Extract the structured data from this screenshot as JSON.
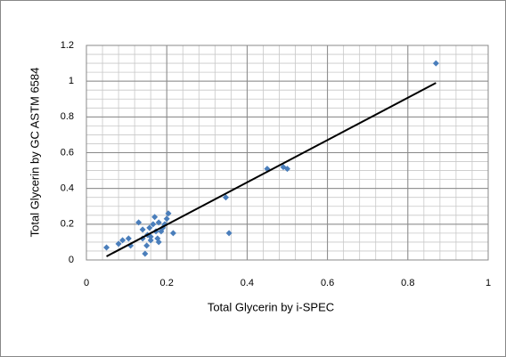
{
  "chart_data": {
    "type": "scatter",
    "x_label": "Total Glycerin by i-SPEC",
    "y_label": "Total Glycerin by GC ASTM 6584",
    "series": [
      {
        "color": "#4a7ebb",
        "x": [
          0.87,
          0.45,
          0.49,
          0.5,
          0.347,
          0.355,
          0.05,
          0.08,
          0.09,
          0.105,
          0.11,
          0.13,
          0.14,
          0.146,
          0.15,
          0.157,
          0.16,
          0.166,
          0.17,
          0.177,
          0.18,
          0.186,
          0.195,
          0.2,
          0.204,
          0.216,
          0.173,
          0.16,
          0.152,
          0.14,
          0.18,
          0.19
        ],
        "values": [
          1.1,
          0.51,
          0.52,
          0.51,
          0.35,
          0.15,
          0.07,
          0.09,
          0.11,
          0.12,
          0.08,
          0.21,
          0.17,
          0.035,
          0.08,
          0.18,
          0.13,
          0.2,
          0.24,
          0.12,
          0.1,
          0.16,
          0.2,
          0.23,
          0.26,
          0.15,
          0.16,
          0.11,
          0.14,
          0.12,
          0.21,
          0.18
        ]
      }
    ],
    "trendline": {
      "x": [
        0.05,
        0.87
      ],
      "values": [
        0.02,
        0.99
      ],
      "color": "#000000"
    },
    "xlim": [
      0,
      1
    ],
    "xticks": [
      0,
      0.2,
      0.4,
      0.6,
      0.8,
      1
    ],
    "ylim": [
      0,
      1.2
    ],
    "yticks": [
      0,
      0.2,
      0.4,
      0.6,
      0.8,
      1,
      1.2
    ],
    "grid": true,
    "minor_grid": {
      "x": 0.04,
      "y": 0.05
    }
  }
}
